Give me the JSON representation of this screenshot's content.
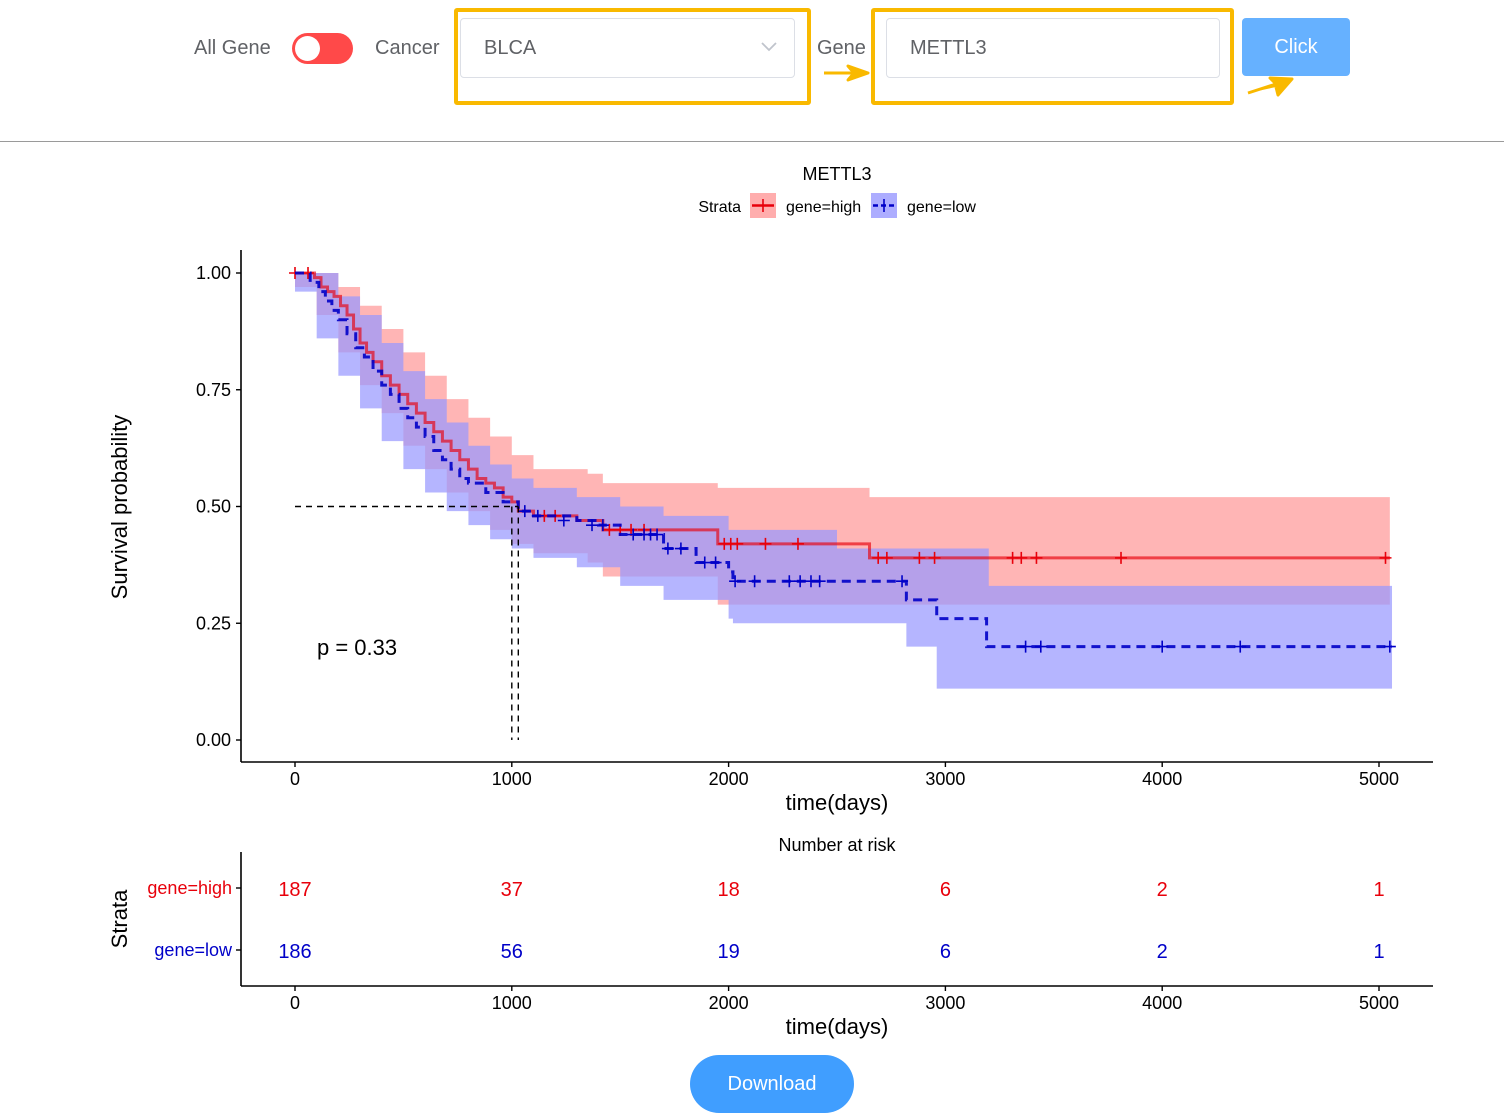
{
  "controls": {
    "all_gene_label": "All Gene",
    "cancer_label": "Cancer",
    "cancer_value": "BLCA",
    "gene_label": "Gene",
    "gene_value": "METTL3",
    "click_label": "Click",
    "download_label": "Download",
    "toggle_on": false
  },
  "colors": {
    "toggle": "#ff4949",
    "button": "#409eff",
    "button_light": "#66b1ff",
    "highlight": "#f9b900",
    "high": "#e8000b",
    "low": "#0000c8"
  },
  "icons": {
    "select_arrow": "chevron-down-icon",
    "pointer": "arrow-icon"
  },
  "chart_data": {
    "type": "survival",
    "title": "METTL3",
    "legend_title": "Strata",
    "legend_position": "top",
    "xlabel": "time(days)",
    "ylabel": "Survival probability",
    "xlim": [
      -250,
      5250
    ],
    "ylim": [
      -0.05,
      1.05
    ],
    "xticks": [
      0,
      1000,
      2000,
      3000,
      4000,
      5000
    ],
    "yticks": [
      "0.00",
      "0.25",
      "0.50",
      "0.75",
      "1.00"
    ],
    "pvalue_text": "p = 0.33",
    "median_line": 0.5,
    "medians": [
      1000,
      1030
    ],
    "series": [
      {
        "name": "gene=high",
        "color": "#e8000b",
        "fill": "#ff9999",
        "steps": [
          [
            0,
            1.0
          ],
          [
            90,
            0.99
          ],
          [
            120,
            0.97
          ],
          [
            150,
            0.96
          ],
          [
            180,
            0.95
          ],
          [
            210,
            0.93
          ],
          [
            240,
            0.91
          ],
          [
            270,
            0.88
          ],
          [
            300,
            0.85
          ],
          [
            330,
            0.83
          ],
          [
            360,
            0.81
          ],
          [
            400,
            0.78
          ],
          [
            440,
            0.76
          ],
          [
            480,
            0.74
          ],
          [
            520,
            0.72
          ],
          [
            560,
            0.7
          ],
          [
            600,
            0.68
          ],
          [
            640,
            0.66
          ],
          [
            680,
            0.64
          ],
          [
            720,
            0.62
          ],
          [
            760,
            0.6
          ],
          [
            800,
            0.58
          ],
          [
            840,
            0.56
          ],
          [
            880,
            0.55
          ],
          [
            920,
            0.54
          ],
          [
            960,
            0.52
          ],
          [
            1000,
            0.51
          ],
          [
            1030,
            0.49
          ],
          [
            1100,
            0.48
          ],
          [
            1300,
            0.47
          ],
          [
            1420,
            0.45
          ],
          [
            1950,
            0.42
          ],
          [
            2650,
            0.39
          ],
          [
            5050,
            0.39
          ]
        ],
        "upper": [
          [
            0,
            1.0
          ],
          [
            100,
            1.0
          ],
          [
            200,
            0.97
          ],
          [
            300,
            0.93
          ],
          [
            400,
            0.88
          ],
          [
            500,
            0.83
          ],
          [
            600,
            0.78
          ],
          [
            700,
            0.73
          ],
          [
            800,
            0.69
          ],
          [
            900,
            0.65
          ],
          [
            1000,
            0.61
          ],
          [
            1100,
            0.58
          ],
          [
            1350,
            0.57
          ],
          [
            1420,
            0.55
          ],
          [
            1950,
            0.54
          ],
          [
            2650,
            0.52
          ],
          [
            5050,
            0.52
          ]
        ],
        "lower": [
          [
            0,
            1.0
          ],
          [
            100,
            0.97
          ],
          [
            200,
            0.91
          ],
          [
            300,
            0.83
          ],
          [
            400,
            0.76
          ],
          [
            500,
            0.7
          ],
          [
            600,
            0.63
          ],
          [
            700,
            0.58
          ],
          [
            800,
            0.53
          ],
          [
            900,
            0.49
          ],
          [
            1000,
            0.45
          ],
          [
            1100,
            0.42
          ],
          [
            1350,
            0.4
          ],
          [
            1420,
            0.38
          ],
          [
            1950,
            0.35
          ],
          [
            2650,
            0.29
          ],
          [
            5050,
            0.29
          ]
        ],
        "censor": [
          [
            0,
            1.0
          ],
          [
            60,
            1.0
          ],
          [
            1150,
            0.48
          ],
          [
            1200,
            0.48
          ],
          [
            1450,
            0.45
          ],
          [
            1500,
            0.45
          ],
          [
            1550,
            0.45
          ],
          [
            1610,
            0.45
          ],
          [
            1980,
            0.42
          ],
          [
            2010,
            0.42
          ],
          [
            2040,
            0.42
          ],
          [
            2170,
            0.42
          ],
          [
            2320,
            0.42
          ],
          [
            2690,
            0.39
          ],
          [
            2730,
            0.39
          ],
          [
            2880,
            0.39
          ],
          [
            2950,
            0.39
          ],
          [
            3310,
            0.39
          ],
          [
            3350,
            0.39
          ],
          [
            3420,
            0.39
          ],
          [
            3810,
            0.39
          ],
          [
            5030,
            0.39
          ]
        ],
        "risk": [
          187,
          37,
          18,
          6,
          2,
          1
        ]
      },
      {
        "name": "gene=low",
        "color": "#0000c8",
        "fill": "#9999ff",
        "steps": [
          [
            0,
            1.0
          ],
          [
            70,
            0.98
          ],
          [
            110,
            0.96
          ],
          [
            140,
            0.94
          ],
          [
            170,
            0.92
          ],
          [
            200,
            0.9
          ],
          [
            240,
            0.87
          ],
          [
            280,
            0.84
          ],
          [
            320,
            0.82
          ],
          [
            360,
            0.79
          ],
          [
            400,
            0.76
          ],
          [
            440,
            0.74
          ],
          [
            480,
            0.71
          ],
          [
            520,
            0.69
          ],
          [
            560,
            0.67
          ],
          [
            600,
            0.65
          ],
          [
            640,
            0.62
          ],
          [
            680,
            0.6
          ],
          [
            720,
            0.58
          ],
          [
            760,
            0.56
          ],
          [
            800,
            0.55
          ],
          [
            880,
            0.53
          ],
          [
            960,
            0.51
          ],
          [
            1030,
            0.49
          ],
          [
            1100,
            0.48
          ],
          [
            1300,
            0.47
          ],
          [
            1400,
            0.46
          ],
          [
            1500,
            0.44
          ],
          [
            1700,
            0.41
          ],
          [
            1850,
            0.38
          ],
          [
            2000,
            0.36
          ],
          [
            2020,
            0.34
          ],
          [
            2500,
            0.34
          ],
          [
            2820,
            0.3
          ],
          [
            2960,
            0.26
          ],
          [
            3190,
            0.2
          ],
          [
            5060,
            0.2
          ]
        ],
        "upper": [
          [
            0,
            1.0
          ],
          [
            100,
            1.0
          ],
          [
            200,
            0.95
          ],
          [
            300,
            0.91
          ],
          [
            400,
            0.85
          ],
          [
            500,
            0.79
          ],
          [
            600,
            0.73
          ],
          [
            700,
            0.68
          ],
          [
            800,
            0.63
          ],
          [
            900,
            0.59
          ],
          [
            1000,
            0.56
          ],
          [
            1100,
            0.54
          ],
          [
            1300,
            0.52
          ],
          [
            1500,
            0.5
          ],
          [
            1700,
            0.48
          ],
          [
            2000,
            0.45
          ],
          [
            2500,
            0.41
          ],
          [
            2820,
            0.41
          ],
          [
            3190,
            0.41
          ],
          [
            3200,
            0.33
          ],
          [
            5060,
            0.33
          ]
        ],
        "lower": [
          [
            0,
            1.0
          ],
          [
            100,
            0.96
          ],
          [
            200,
            0.86
          ],
          [
            300,
            0.78
          ],
          [
            400,
            0.71
          ],
          [
            500,
            0.64
          ],
          [
            600,
            0.58
          ],
          [
            700,
            0.53
          ],
          [
            800,
            0.49
          ],
          [
            900,
            0.46
          ],
          [
            1000,
            0.43
          ],
          [
            1100,
            0.41
          ],
          [
            1300,
            0.39
          ],
          [
            1500,
            0.37
          ],
          [
            1700,
            0.33
          ],
          [
            2000,
            0.3
          ],
          [
            2020,
            0.26
          ],
          [
            2820,
            0.25
          ],
          [
            2960,
            0.2
          ],
          [
            3190,
            0.11
          ],
          [
            5060,
            0.11
          ]
        ],
        "censor": [
          [
            1060,
            0.49
          ],
          [
            1120,
            0.48
          ],
          [
            1240,
            0.47
          ],
          [
            1370,
            0.46
          ],
          [
            1420,
            0.46
          ],
          [
            1560,
            0.44
          ],
          [
            1610,
            0.44
          ],
          [
            1640,
            0.44
          ],
          [
            1670,
            0.44
          ],
          [
            1720,
            0.41
          ],
          [
            1780,
            0.41
          ],
          [
            1890,
            0.38
          ],
          [
            1940,
            0.38
          ],
          [
            2030,
            0.34
          ],
          [
            2120,
            0.34
          ],
          [
            2280,
            0.34
          ],
          [
            2330,
            0.34
          ],
          [
            2380,
            0.34
          ],
          [
            2420,
            0.34
          ],
          [
            2800,
            0.34
          ],
          [
            3370,
            0.2
          ],
          [
            3440,
            0.2
          ],
          [
            4000,
            0.2
          ],
          [
            4360,
            0.2
          ],
          [
            5050,
            0.2
          ]
        ],
        "risk": [
          186,
          56,
          19,
          6,
          2,
          1
        ]
      }
    ],
    "risk_table": {
      "title": "Number at risk",
      "ylabel": "Strata",
      "xlabel": "time(days)",
      "xticks": [
        0,
        1000,
        2000,
        3000,
        4000,
        5000
      ]
    }
  }
}
